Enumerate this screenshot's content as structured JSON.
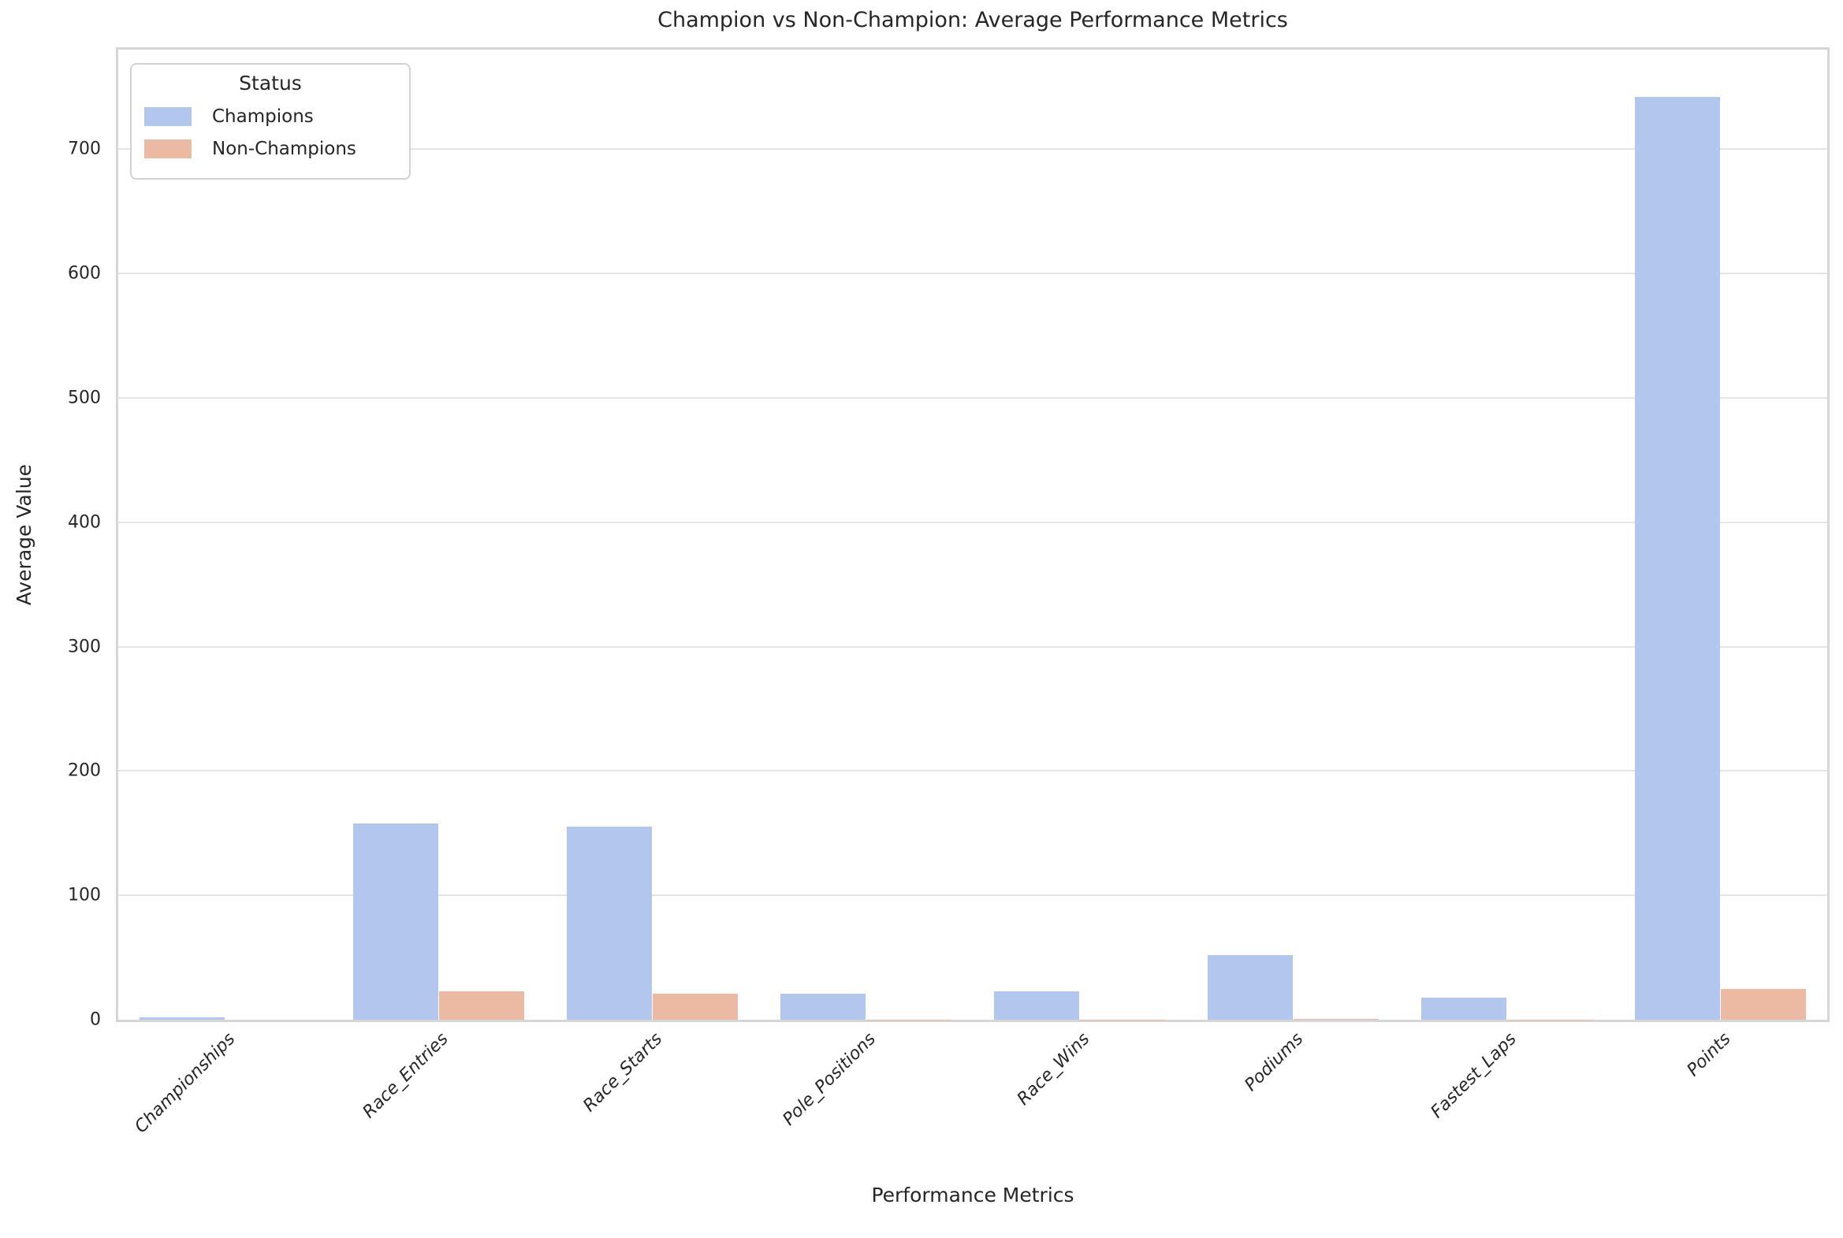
{
  "chart_data": {
    "type": "bar",
    "title": "Champion vs Non-Champion: Average Performance Metrics",
    "xlabel": "Performance Metrics",
    "ylabel": "Average Value",
    "categories": [
      "Championships",
      "Race_Entries",
      "Race_Starts",
      "Pole_Positions",
      "Race_Wins",
      "Podiums",
      "Fastest_Laps",
      "Points"
    ],
    "series": [
      {
        "name": "Champions",
        "color": "#b3c7ee",
        "values": [
          1.6,
          158,
          155,
          21,
          23,
          52,
          18,
          742
        ]
      },
      {
        "name": "Non-Champions",
        "color": "#ecb9a2",
        "values": [
          0,
          23,
          21,
          0.3,
          0.2,
          0.5,
          0.2,
          25
        ]
      }
    ],
    "ylim": [
      0,
      780
    ],
    "yticks": [
      0,
      100,
      200,
      300,
      400,
      500,
      600,
      700
    ],
    "grid": true,
    "legend": {
      "title": "Status",
      "position": "upper left"
    }
  }
}
